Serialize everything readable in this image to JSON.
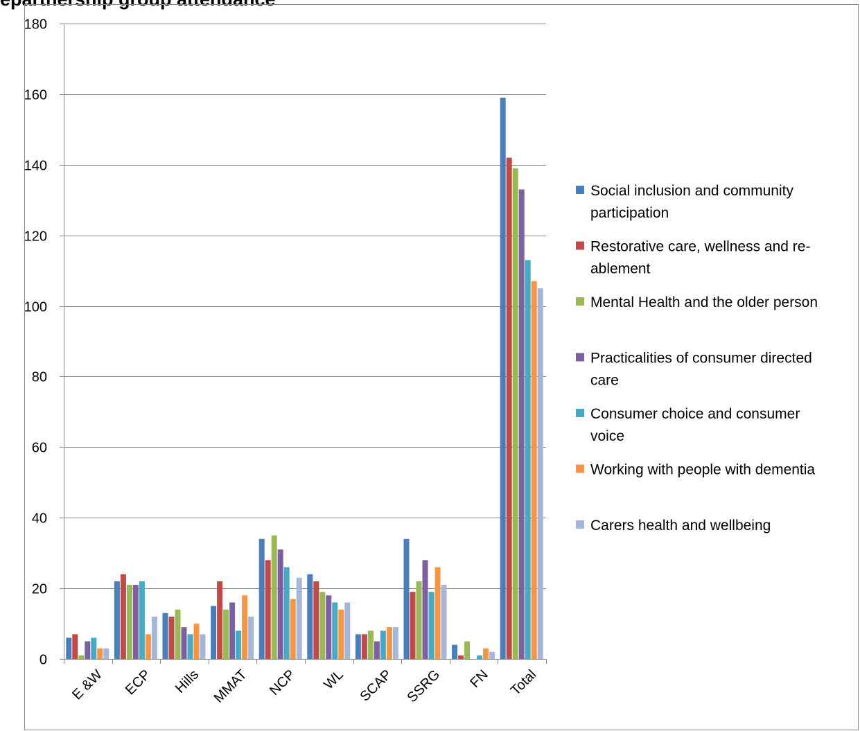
{
  "heading": "epartnership group attendance",
  "chart_data": {
    "type": "bar",
    "title": "",
    "xlabel": "",
    "ylabel": "",
    "ylim": [
      0,
      180
    ],
    "yticks": [
      0,
      20,
      40,
      60,
      80,
      100,
      120,
      140,
      160,
      180
    ],
    "grid": true,
    "legend_position": "right",
    "categories": [
      "E &W",
      "ECP",
      "Hills",
      "MMAT",
      "NCP",
      "WL",
      "SCAP",
      "SSRG",
      "FN",
      "Total"
    ],
    "series": [
      {
        "name": "Social inclusion and community participation",
        "color": "#4a7ebb",
        "values": [
          6,
          22,
          13,
          15,
          34,
          24,
          7,
          34,
          4,
          159
        ]
      },
      {
        "name": "Restorative care, wellness and re-ablement",
        "color": "#be4b48",
        "values": [
          7,
          24,
          12,
          22,
          28,
          22,
          7,
          19,
          1,
          142
        ]
      },
      {
        "name": "Mental Health and the older person",
        "color": "#98b954",
        "values": [
          1,
          21,
          14,
          14,
          35,
          19,
          8,
          22,
          5,
          139
        ]
      },
      {
        "name": "Practicalities of consumer directed care",
        "color": "#7d60a0",
        "values": [
          5,
          21,
          9,
          16,
          31,
          18,
          5,
          28,
          0,
          133
        ]
      },
      {
        "name": "Consumer choice and consumer voice",
        "color": "#46aac5",
        "values": [
          6,
          22,
          7,
          8,
          26,
          16,
          8,
          19,
          1,
          113
        ]
      },
      {
        "name": "Working with people with dementia",
        "color": "#f69545",
        "values": [
          3,
          7,
          10,
          18,
          17,
          14,
          9,
          26,
          3,
          107
        ]
      },
      {
        "name": "Carers health and wellbeing",
        "color": "#a5b6d8",
        "values": [
          3,
          12,
          7,
          12,
          23,
          16,
          9,
          21,
          2,
          105
        ]
      }
    ]
  }
}
